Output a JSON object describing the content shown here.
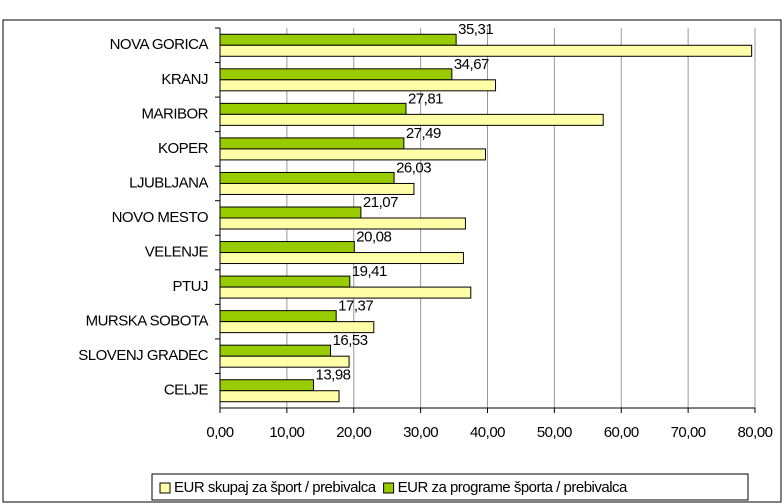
{
  "chart_data": {
    "type": "bar",
    "orientation": "horizontal",
    "categories": [
      "NOVA GORICA",
      "KRANJ",
      "MARIBOR",
      "KOPER",
      "LJUBLJANA",
      "NOVO MESTO",
      "VELENJE",
      "PTUJ",
      "MURSKA SOBOTA",
      "SLOVENJ GRADEC",
      "CELJE"
    ],
    "series": [
      {
        "name": "EUR skupaj za šport / prebivalca",
        "color": "#ffffa8",
        "values": [
          79.5,
          41.2,
          57.3,
          39.7,
          29.0,
          36.7,
          36.4,
          37.5,
          23.0,
          19.3,
          17.8
        ]
      },
      {
        "name": "EUR za programe športa / prebivalca",
        "color": "#99cc00",
        "values": [
          35.31,
          34.67,
          27.81,
          27.49,
          26.03,
          21.07,
          20.08,
          19.41,
          17.37,
          16.53,
          13.98
        ],
        "value_labels": [
          "35,31",
          "34,67",
          "27,81",
          "27,49",
          "26,03",
          "21,07",
          "20,08",
          "19,41",
          "17,37",
          "16,53",
          "13,98"
        ]
      }
    ],
    "xlim": [
      0,
      80
    ],
    "xticks": [
      {
        "value": 0,
        "label": "0,00"
      },
      {
        "value": 10,
        "label": "10,00"
      },
      {
        "value": 20,
        "label": "20,00"
      },
      {
        "value": 30,
        "label": "30,00"
      },
      {
        "value": 40,
        "label": "40,00"
      },
      {
        "value": 50,
        "label": "50,00"
      },
      {
        "value": 60,
        "label": "60,00"
      },
      {
        "value": 70,
        "label": "70,00"
      },
      {
        "value": 80,
        "label": "80,00"
      }
    ],
    "grid": true,
    "legend": "bottom"
  }
}
